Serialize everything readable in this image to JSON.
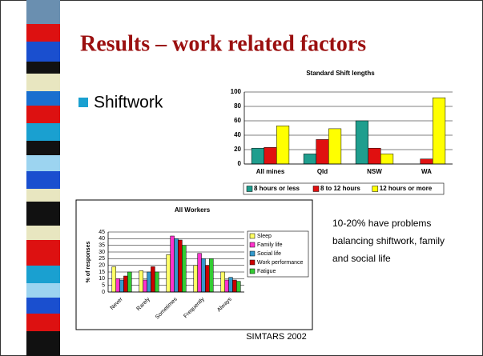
{
  "slide_title": "Results – work related factors",
  "bullet": "Shiftwork",
  "note_lines": [
    "10-20% have problems",
    "balancing shiftwork, family",
    "and social life"
  ],
  "source": "SIMTARS 2002",
  "chart_data": [
    {
      "type": "bar",
      "title": "Standard Shift lengths",
      "categories": [
        "All mines",
        "Qld",
        "NSW",
        "WA"
      ],
      "series": [
        {
          "name": "8 hours or less",
          "color": "#1f9e8e",
          "values": [
            22,
            14,
            60,
            0
          ]
        },
        {
          "name": "8 to 12 hours",
          "color": "#e01010",
          "values": [
            23,
            34,
            22,
            7
          ]
        },
        {
          "name": "12 hours or more",
          "color": "#ffff00",
          "values": [
            53,
            49,
            14,
            92
          ]
        }
      ],
      "ylim": [
        0,
        100
      ],
      "yticks": [
        0,
        20,
        40,
        60,
        80,
        100
      ],
      "grid": true,
      "legend": "bottom"
    },
    {
      "type": "bar",
      "title": "All Workers",
      "ylabel": "% of responses",
      "categories": [
        "Never",
        "Rarely",
        "Sometimes",
        "Frequently",
        "Always"
      ],
      "series": [
        {
          "name": "Sleep",
          "color": "#ffff66",
          "values": [
            19,
            16,
            28,
            20,
            15
          ]
        },
        {
          "name": "Family life",
          "color": "#ff33cc",
          "values": [
            10,
            9,
            42,
            29,
            9
          ]
        },
        {
          "name": "Social life",
          "color": "#3399cc",
          "values": [
            9,
            15,
            40,
            25,
            11
          ]
        },
        {
          "name": "Work performance",
          "color": "#cc0000",
          "values": [
            12,
            19,
            39,
            20,
            9
          ]
        },
        {
          "name": "Fatigue",
          "color": "#33cc33",
          "values": [
            15,
            15,
            35,
            25,
            8
          ]
        }
      ],
      "ylim": [
        0,
        45
      ],
      "yticks": [
        0,
        5,
        10,
        15,
        20,
        25,
        30,
        35,
        40,
        45
      ],
      "grid": true,
      "legend": "right"
    }
  ]
}
